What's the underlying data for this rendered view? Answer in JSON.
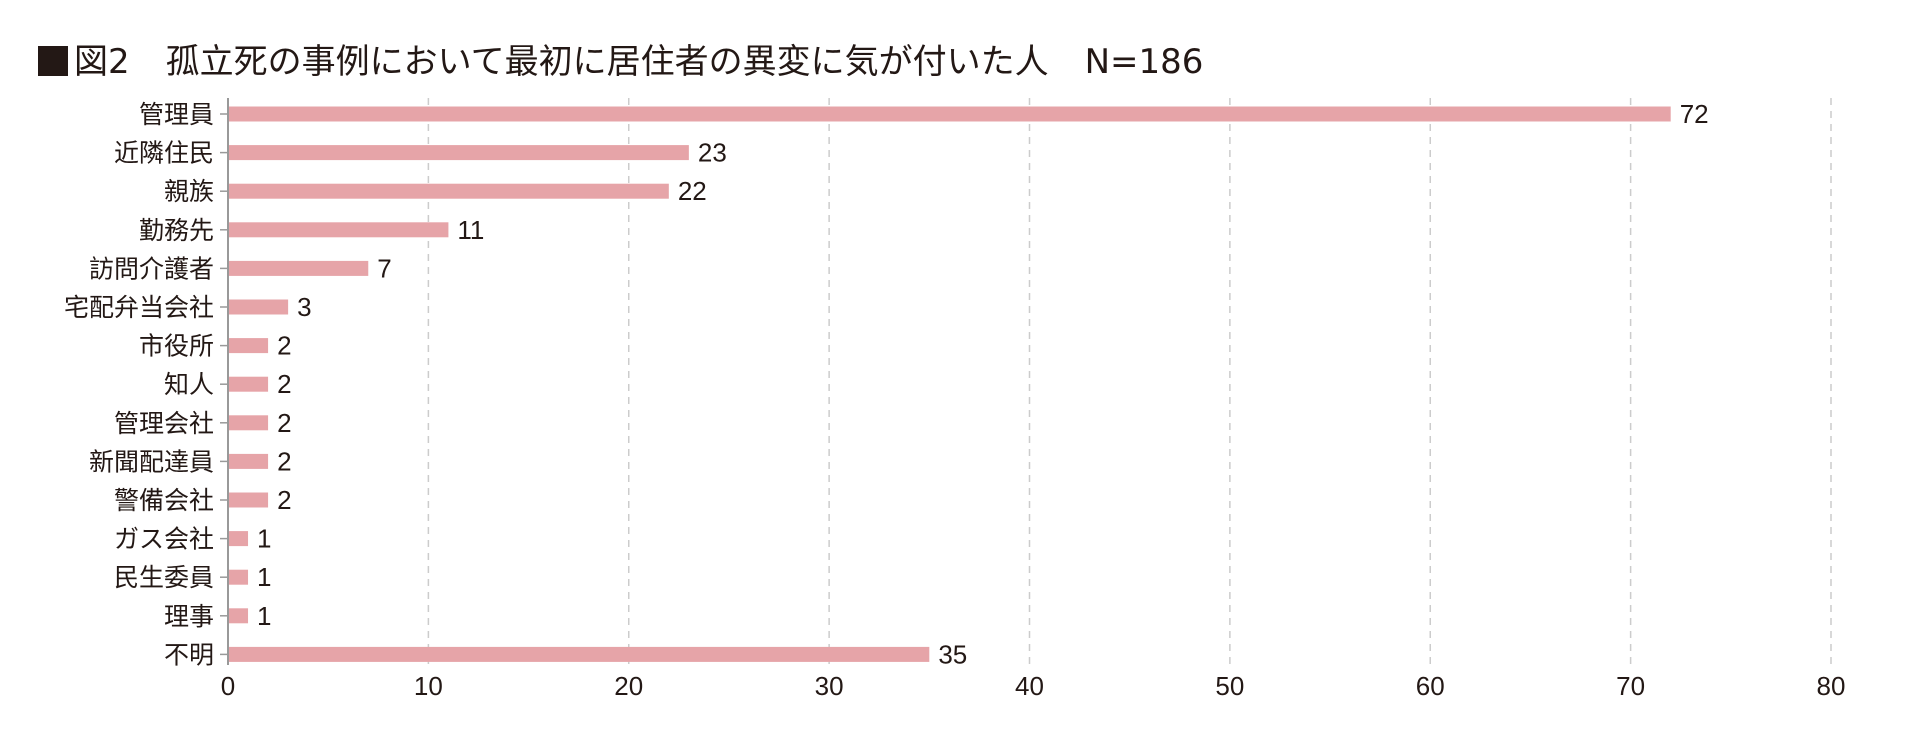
{
  "chart_data": {
    "type": "bar",
    "orientation": "horizontal",
    "title_prefix": "図2",
    "title": "孤立死の事例において最初に居住者の異変に気が付いた人",
    "n_label": "N=186",
    "categories": [
      "管理員",
      "近隣住民",
      "親族",
      "勤務先",
      "訪問介護者",
      "宅配弁当会社",
      "市役所",
      "知人",
      "管理会社",
      "新聞配達員",
      "警備会社",
      "ガス会社",
      "民生委員",
      "理事",
      "不明"
    ],
    "values": [
      72,
      23,
      22,
      11,
      7,
      3,
      2,
      2,
      2,
      2,
      2,
      1,
      1,
      1,
      35
    ],
    "xlim": [
      0,
      80
    ],
    "xticks": [
      0,
      10,
      20,
      30,
      40,
      50,
      60,
      70,
      80
    ],
    "xlabel": "",
    "ylabel": "",
    "grid": "vertical dashed",
    "bar_color": "#e6a4a8"
  }
}
